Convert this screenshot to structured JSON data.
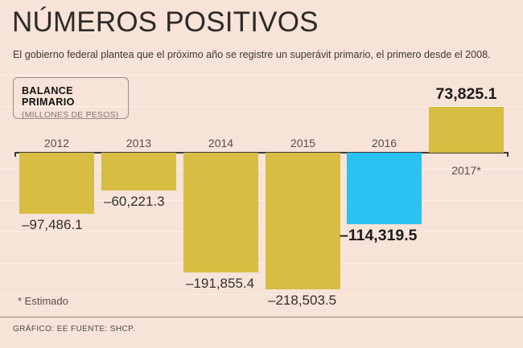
{
  "header": {
    "title": "NÚMEROS POSITIVOS",
    "subtitle": "El gobierno federal plantea que el próximo año se registre un superávit primario, el primero desde el 2008."
  },
  "legend": {
    "title": "BALANCE PRIMARIO",
    "units": "(MILLONES DE PESOS)"
  },
  "chart_data": {
    "type": "bar",
    "title": "BALANCE PRIMARIO",
    "ylabel": "MILLONES DE PESOS",
    "categories": [
      "2012",
      "2013",
      "2014",
      "2015",
      "2016",
      "2017*"
    ],
    "values": [
      -97486.1,
      -60221.3,
      -191855.4,
      -218503.5,
      -114319.5,
      73825.1
    ],
    "bars": [
      {
        "year": "2012",
        "value": -97486.1,
        "label": "–97,486.1",
        "highlight": false
      },
      {
        "year": "2013",
        "value": -60221.3,
        "label": "–60,221.3",
        "highlight": false
      },
      {
        "year": "2014",
        "value": -191855.4,
        "label": "–191,855.4",
        "highlight": false
      },
      {
        "year": "2015",
        "value": -218503.5,
        "label": "–218,503.5",
        "highlight": false
      },
      {
        "year": "2016",
        "value": -114319.5,
        "label": "–114,319.5",
        "highlight": true
      },
      {
        "year": "2017*",
        "value": 73825.1,
        "label": "73,825.1",
        "highlight": true
      }
    ],
    "ylim": [
      -250000,
      100000
    ],
    "gridline_interval": 50000,
    "legend_position": "top-left",
    "grid": true
  },
  "colors": {
    "background": "#f7e3d8",
    "bar_default": "#d7bd42",
    "bar_highlight": "#2bc1f1",
    "axis": "#3d3a38"
  },
  "footer": {
    "note": "* Estimado",
    "credit": "GRÁFICO: EE  FUENTE: SHCP."
  }
}
